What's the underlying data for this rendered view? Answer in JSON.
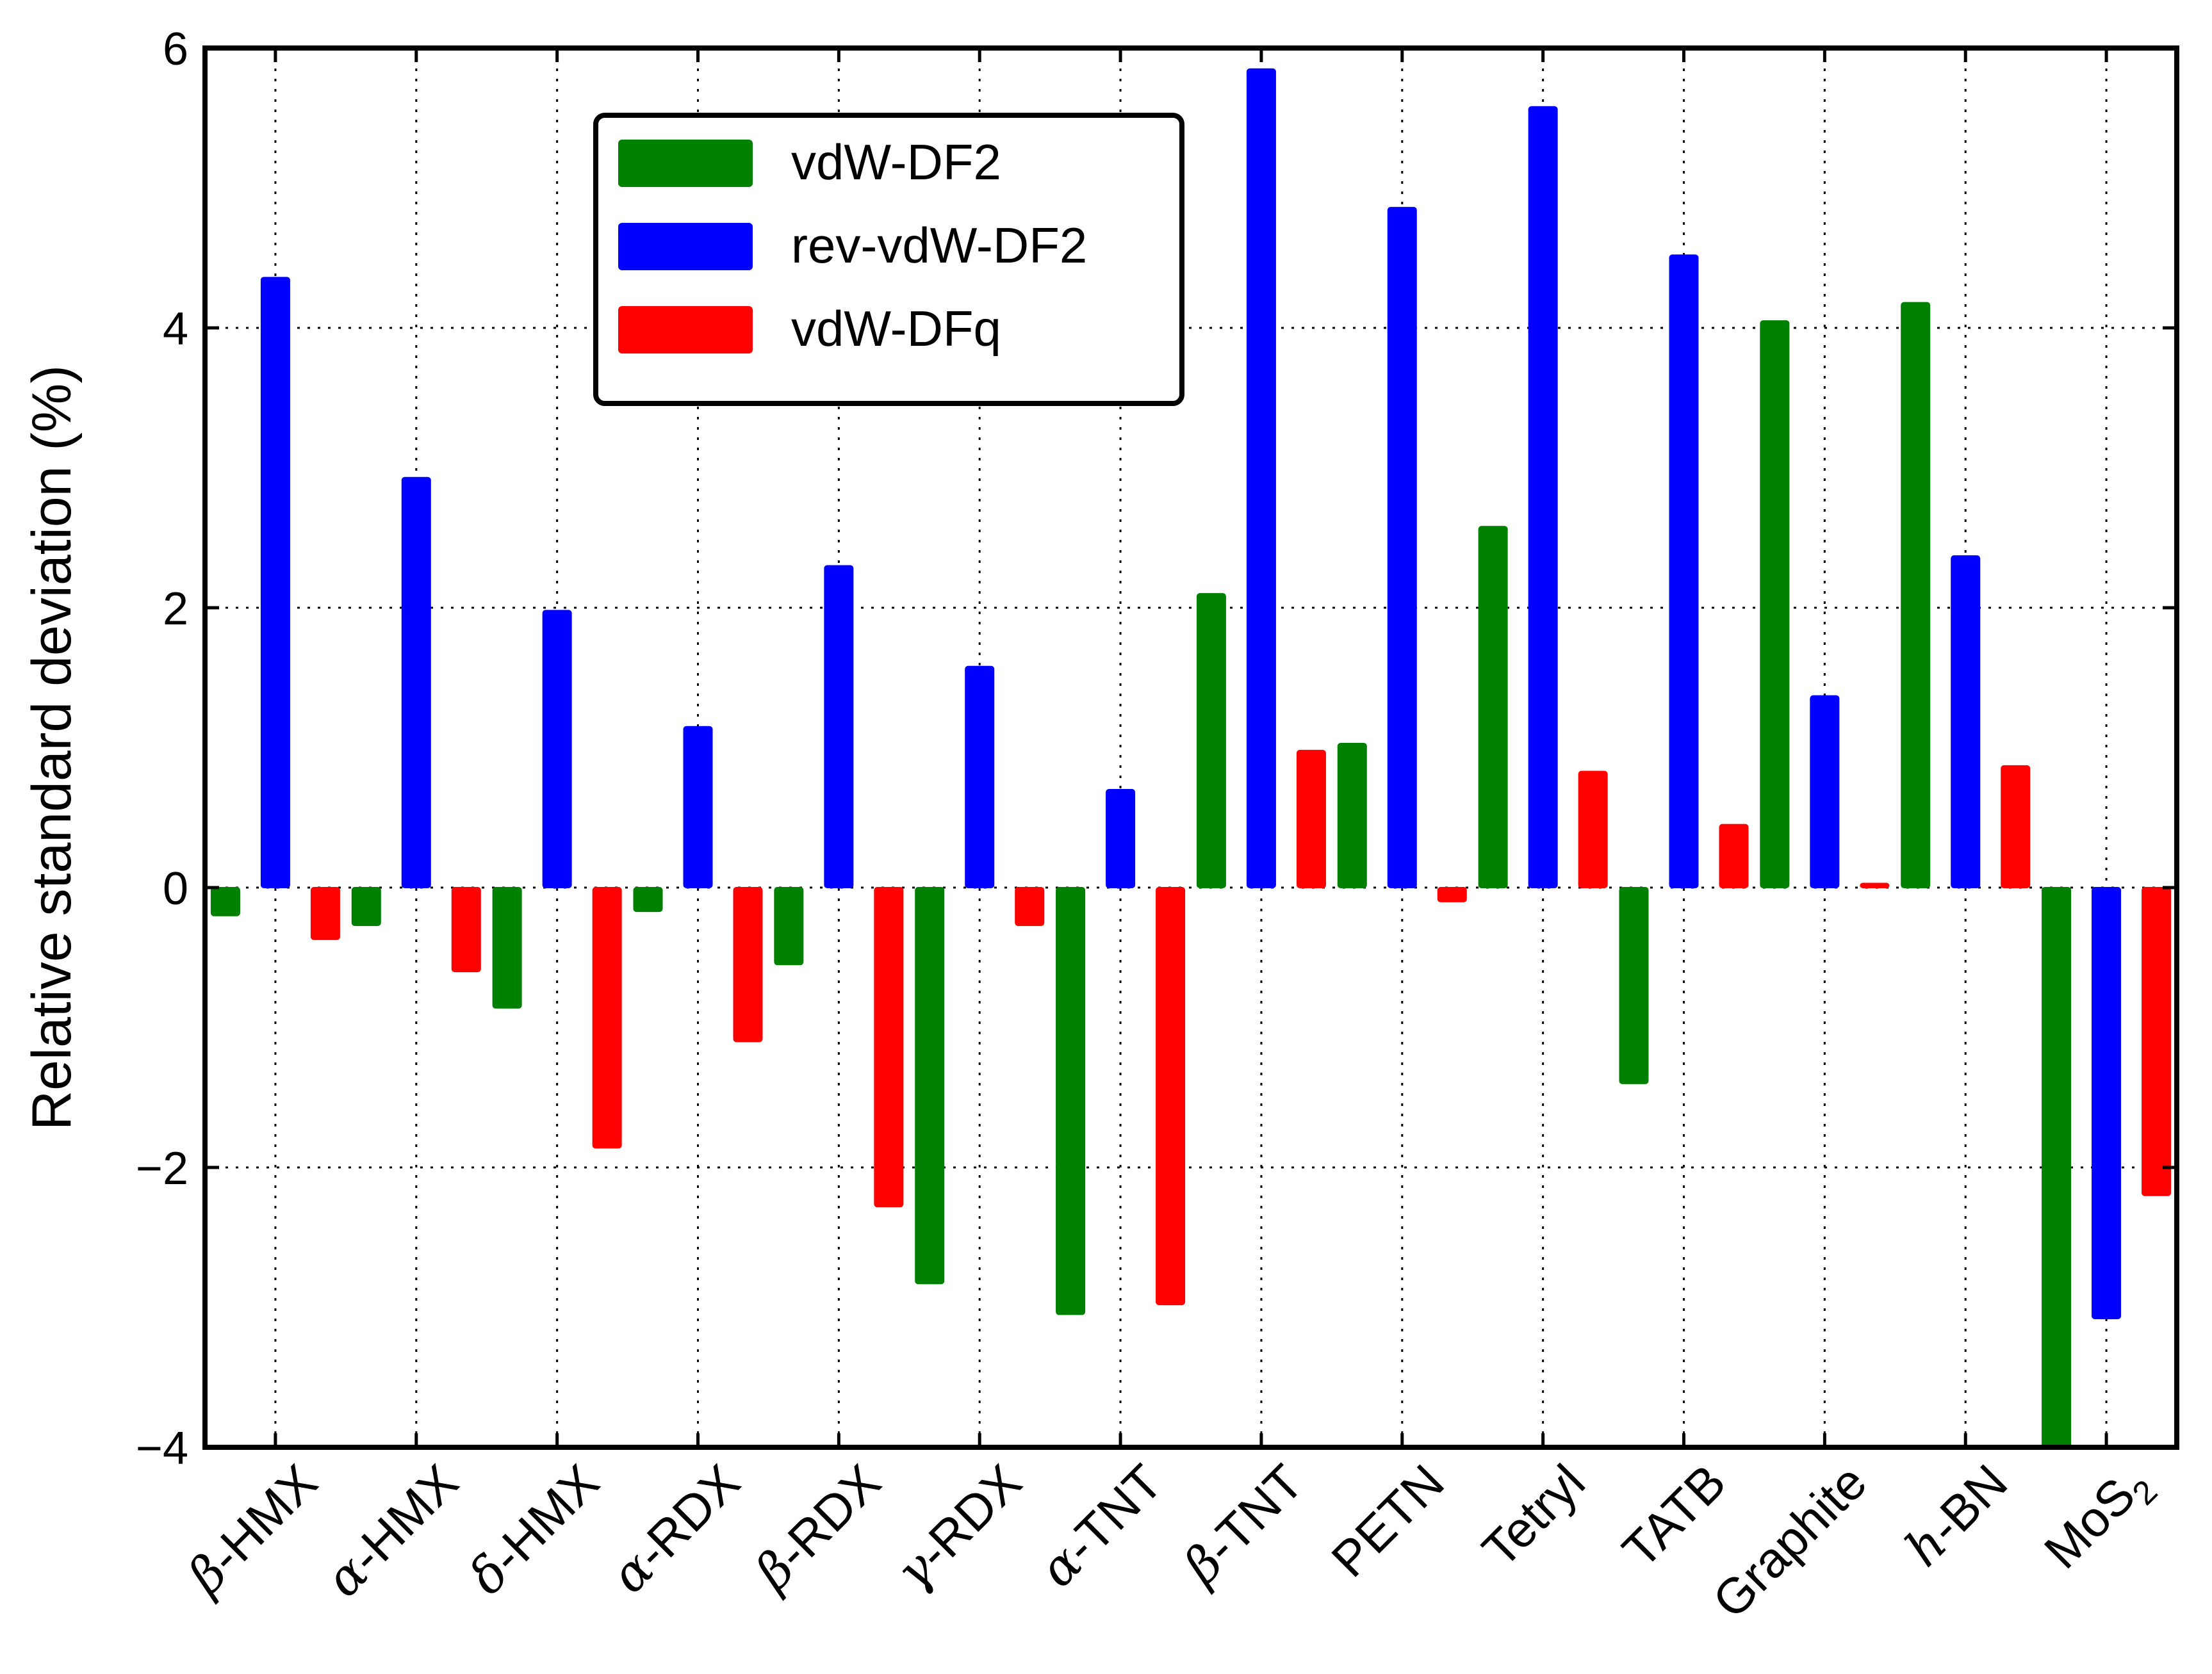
{
  "chart_data": {
    "type": "bar",
    "title": "",
    "xlabel": "",
    "ylabel": "Relative standard deviation (%)",
    "ylim": [
      -4,
      6
    ],
    "yticks": [
      -4,
      -2,
      0,
      2,
      4,
      6
    ],
    "ytick_labels": [
      "−4",
      "−2",
      "0",
      "2",
      "4",
      "6"
    ],
    "grid": true,
    "legend_position": "top-center-left",
    "categories": [
      "β-HMX",
      "α-HMX",
      "δ-HMX",
      "α-RDX",
      "β-RDX",
      "γ-RDX",
      "α-TNT",
      "β-TNT",
      "PETN",
      "Tetryl",
      "TATB",
      "Graphite",
      "h-BN",
      "MoS2"
    ],
    "category_labels": [
      {
        "prefix": "β",
        "rest": "-HMX"
      },
      {
        "prefix": "α",
        "rest": "-HMX"
      },
      {
        "prefix": "δ",
        "rest": "-HMX"
      },
      {
        "prefix": "α",
        "rest": "-RDX"
      },
      {
        "prefix": "β",
        "rest": "-RDX"
      },
      {
        "prefix": "γ",
        "rest": "-RDX"
      },
      {
        "prefix": "α",
        "rest": "-TNT"
      },
      {
        "prefix": "β",
        "rest": "-TNT"
      },
      {
        "prefix": "",
        "rest": "PETN"
      },
      {
        "prefix": "",
        "rest": "Tetryl"
      },
      {
        "prefix": "",
        "rest": "TATB"
      },
      {
        "prefix": "",
        "rest": "Graphite"
      },
      {
        "prefix": "h",
        "rest": "-BN"
      },
      {
        "prefix": "",
        "rest": "MoS",
        "sub": "2"
      }
    ],
    "series": [
      {
        "name": "vdW-DF2",
        "color": "#008000",
        "values": [
          -0.2,
          -0.27,
          -0.86,
          -0.17,
          -0.55,
          -2.83,
          -3.05,
          2.1,
          1.03,
          2.58,
          -1.4,
          4.05,
          4.18,
          -4.0
        ]
      },
      {
        "name": "rev-vdW-DF2",
        "color": "#0000ff",
        "values": [
          4.36,
          2.93,
          1.98,
          1.15,
          2.3,
          1.58,
          0.7,
          5.85,
          4.86,
          5.58,
          4.52,
          1.37,
          2.37,
          -3.08
        ]
      },
      {
        "name": "vdW-DFq",
        "color": "#ff0000",
        "values": [
          -0.37,
          -0.6,
          -1.86,
          -1.1,
          -2.28,
          -0.27,
          -2.98,
          0.98,
          -0.1,
          0.83,
          0.45,
          0.03,
          0.87,
          -2.2
        ]
      }
    ]
  }
}
